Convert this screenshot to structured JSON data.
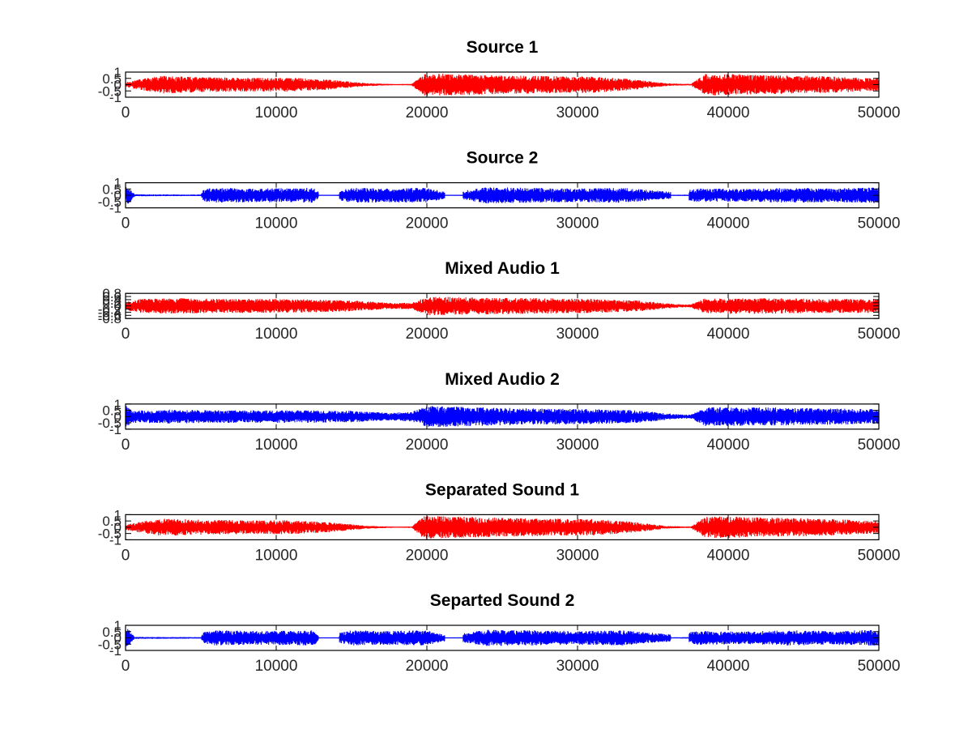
{
  "figure": {
    "background": "#ffffff",
    "axis_color": "#000000",
    "tick_label_color": "#262626"
  },
  "chart_data": [
    {
      "type": "line",
      "title": "Source 1",
      "color": "#ff0000",
      "xlim": [
        0,
        50000
      ],
      "ylim": [
        -1,
        1
      ],
      "xticks": [
        "0",
        "10000",
        "20000",
        "30000",
        "40000",
        "50000"
      ],
      "yticks": [
        "-1",
        "-0.5",
        "0",
        "0.5",
        "1"
      ],
      "grid": false,
      "envelope": {
        "x": [
          0,
          1000,
          2500,
          5000,
          8000,
          11000,
          13500,
          16000,
          18000,
          19000,
          19800,
          22000,
          25000,
          28000,
          31000,
          33500,
          36000,
          37500,
          38500,
          40000,
          43000,
          46000,
          48000,
          50000
        ],
        "y": [
          0.2,
          0.45,
          0.7,
          0.6,
          0.55,
          0.55,
          0.4,
          0.12,
          0.04,
          0.06,
          0.9,
          0.85,
          0.75,
          0.7,
          0.65,
          0.45,
          0.1,
          0.06,
          0.85,
          0.85,
          0.75,
          0.7,
          0.6,
          0.5
        ]
      }
    },
    {
      "type": "line",
      "title": "Source 2",
      "color": "#0000ff",
      "xlim": [
        0,
        50000
      ],
      "ylim": [
        -1,
        1
      ],
      "xticks": [
        "0",
        "10000",
        "20000",
        "30000",
        "40000",
        "50000"
      ],
      "yticks": [
        "-1",
        "-0.5",
        "0",
        "0.5",
        "1"
      ],
      "grid": false,
      "envelope": {
        "x": [
          0,
          200,
          600,
          5000,
          5200,
          6000,
          9000,
          12500,
          13000,
          15000,
          17000,
          20000,
          21500,
          24000,
          27000,
          30000,
          33000,
          36000,
          38000,
          41000,
          44000,
          47000,
          50000
        ],
        "y": [
          0.7,
          0.7,
          0.08,
          0.06,
          0.5,
          0.6,
          0.55,
          0.6,
          0.1,
          0.6,
          0.55,
          0.6,
          0.2,
          0.65,
          0.6,
          0.55,
          0.6,
          0.3,
          0.55,
          0.5,
          0.6,
          0.55,
          0.65
        ]
      },
      "gaps": [
        [
          12800,
          14200
        ],
        [
          21200,
          22400
        ],
        [
          36200,
          37400
        ]
      ]
    },
    {
      "type": "line",
      "title": "Mixed Audio 1",
      "color": "#ff0000",
      "xlim": [
        0,
        50000
      ],
      "ylim": [
        -0.8,
        0.8
      ],
      "xticks": [
        "0",
        "10000",
        "20000",
        "30000",
        "40000",
        "50000"
      ],
      "yticks": [
        "-0.8",
        "-0.6",
        "-0.4",
        "-0.2",
        "0",
        "0.2",
        "0.4",
        "0.6",
        "0.8"
      ],
      "grid": false,
      "envelope": {
        "x": [
          0,
          1000,
          3000,
          6000,
          9000,
          12000,
          15000,
          17500,
          19000,
          20000,
          23000,
          27000,
          31000,
          34000,
          36500,
          37500,
          38500,
          42000,
          46000,
          50000
        ],
        "y": [
          0.25,
          0.45,
          0.5,
          0.45,
          0.45,
          0.42,
          0.35,
          0.2,
          0.2,
          0.6,
          0.55,
          0.5,
          0.45,
          0.35,
          0.12,
          0.1,
          0.5,
          0.5,
          0.45,
          0.45
        ]
      }
    },
    {
      "type": "line",
      "title": "Mixed Audio 2",
      "color": "#0000ff",
      "xlim": [
        0,
        50000
      ],
      "ylim": [
        -1,
        1
      ],
      "xticks": [
        "0",
        "10000",
        "20000",
        "30000",
        "40000",
        "50000"
      ],
      "yticks": [
        "-1",
        "-0.5",
        "0",
        "0.5",
        "1"
      ],
      "grid": false,
      "envelope": {
        "x": [
          0,
          500,
          1000,
          3000,
          6000,
          9000,
          12000,
          15000,
          17500,
          19000,
          20000,
          23000,
          27000,
          31000,
          34000,
          36500,
          37500,
          38500,
          42000,
          46000,
          50000
        ],
        "y": [
          0.9,
          0.5,
          0.5,
          0.55,
          0.5,
          0.5,
          0.5,
          0.45,
          0.3,
          0.4,
          0.85,
          0.75,
          0.65,
          0.6,
          0.5,
          0.2,
          0.15,
          0.75,
          0.75,
          0.65,
          0.6
        ]
      }
    },
    {
      "type": "line",
      "title": "Separated Sound 1",
      "color": "#ff0000",
      "xlim": [
        0,
        50000
      ],
      "ylim": [
        -1,
        1
      ],
      "xticks": [
        "0",
        "10000",
        "20000",
        "30000",
        "40000",
        "50000"
      ],
      "yticks": [
        "-1",
        "-0.5",
        "0",
        "0.5",
        "1"
      ],
      "grid": false,
      "envelope": {
        "x": [
          0,
          1000,
          2500,
          5000,
          8000,
          11000,
          13500,
          16000,
          18000,
          19000,
          19800,
          22000,
          25000,
          28000,
          31000,
          33500,
          36000,
          37500,
          38500,
          40000,
          43000,
          46000,
          48000,
          50000
        ],
        "y": [
          0.2,
          0.45,
          0.7,
          0.6,
          0.55,
          0.55,
          0.4,
          0.12,
          0.04,
          0.06,
          0.9,
          0.85,
          0.75,
          0.7,
          0.65,
          0.45,
          0.1,
          0.06,
          0.85,
          0.85,
          0.75,
          0.7,
          0.6,
          0.5
        ]
      }
    },
    {
      "type": "line",
      "title": "Separted Sound 2",
      "color": "#0000ff",
      "xlim": [
        0,
        50000
      ],
      "ylim": [
        -1,
        1
      ],
      "xticks": [
        "0",
        "10000",
        "20000",
        "30000",
        "40000",
        "50000"
      ],
      "yticks": [
        "-1",
        "-0.5",
        "0",
        "0.5",
        "1"
      ],
      "grid": false,
      "envelope": {
        "x": [
          0,
          200,
          600,
          5000,
          5200,
          6000,
          9000,
          12500,
          13000,
          15000,
          17000,
          20000,
          21500,
          24000,
          27000,
          30000,
          33000,
          36000,
          38000,
          41000,
          44000,
          47000,
          50000
        ],
        "y": [
          0.7,
          0.7,
          0.08,
          0.06,
          0.5,
          0.6,
          0.55,
          0.6,
          0.1,
          0.6,
          0.55,
          0.6,
          0.2,
          0.65,
          0.6,
          0.55,
          0.6,
          0.3,
          0.55,
          0.5,
          0.6,
          0.55,
          0.65
        ]
      },
      "gaps": [
        [
          12800,
          14200
        ],
        [
          21200,
          22400
        ],
        [
          36200,
          37400
        ]
      ]
    }
  ]
}
